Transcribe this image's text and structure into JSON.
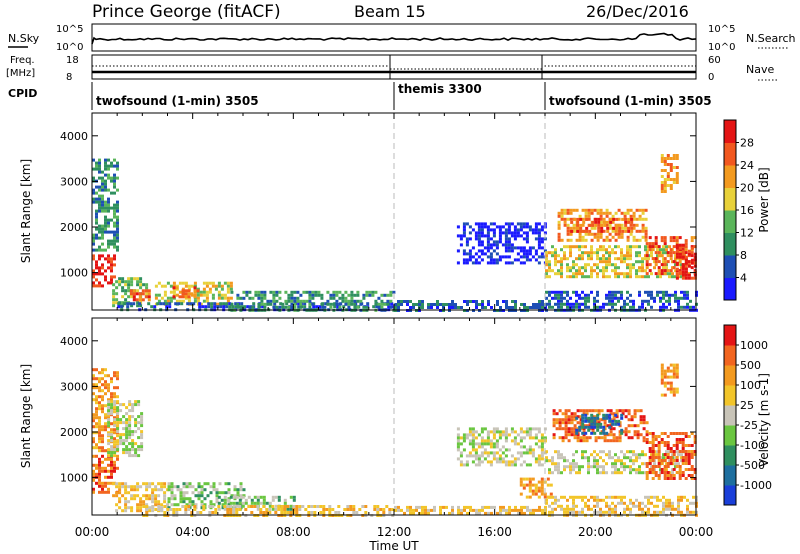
{
  "header": {
    "radar": "Prince George (fitACF)",
    "beam": "Beam 15",
    "date": "26/Dec/2016"
  },
  "top_panels": {
    "nsky_label": "N.Sky",
    "nsearch_label": "N.Search",
    "noise_ticks": [
      "10^5",
      "10^0"
    ],
    "freq_label_1": "Freq.",
    "freq_label_2": "[MHz]",
    "freq_ticks": [
      "18",
      "8"
    ],
    "nave_label": "Nave",
    "nave_ticks": [
      "60",
      "0"
    ],
    "cpid_label": "CPID"
  },
  "cpid_segments": [
    {
      "name": "twofsound (1-min) 3505",
      "start": 0,
      "end": 12
    },
    {
      "name": "themis 3300",
      "start": 12,
      "end": 18
    },
    {
      "name": "twofsound (1-min) 3505",
      "start": 18,
      "end": 24
    }
  ],
  "chart_data": [
    {
      "type": "heatmap",
      "name": "Power",
      "ylabel": "Slant Range [km]",
      "xlabel": "",
      "xlim": [
        0,
        24
      ],
      "ylim": [
        180,
        4500
      ],
      "y_ticks": [
        1000,
        2000,
        3000,
        4000
      ],
      "colorbar": {
        "label": "Power [dB]",
        "ticks": [
          "4",
          "8",
          "12",
          "16",
          "20",
          "24",
          "28"
        ],
        "colors": [
          "#1a1aff",
          "#1e4fb4",
          "#2f8f5f",
          "#5ab55a",
          "#e8d13a",
          "#f39a1f",
          "#f2581f",
          "#e41414"
        ]
      },
      "regions": [
        {
          "t": [
            0.0,
            0.9
          ],
          "r": [
            700,
            1400
          ],
          "level": 7
        },
        {
          "t": [
            0.0,
            1.0
          ],
          "r": [
            1500,
            3500
          ],
          "level": 2
        },
        {
          "t": [
            0.8,
            2.2
          ],
          "r": [
            300,
            900
          ],
          "level": 3
        },
        {
          "t": [
            1.5,
            2.3
          ],
          "r": [
            400,
            700
          ],
          "level": 6
        },
        {
          "t": [
            2.5,
            5.5
          ],
          "r": [
            300,
            800
          ],
          "level": 4
        },
        {
          "t": [
            3.2,
            4.2
          ],
          "r": [
            450,
            700
          ],
          "level": 6
        },
        {
          "t": [
            1.0,
            12.0
          ],
          "r": [
            190,
            350
          ],
          "level": 1
        },
        {
          "t": [
            5.5,
            12.0
          ],
          "r": [
            200,
            600
          ],
          "level": 2
        },
        {
          "t": [
            12.0,
            18.0
          ],
          "r": [
            190,
            400
          ],
          "level": 1
        },
        {
          "t": [
            14.5,
            18.0
          ],
          "r": [
            1200,
            2100
          ],
          "level": 0
        },
        {
          "t": [
            18.0,
            23.5
          ],
          "r": [
            900,
            1600
          ],
          "level": 4
        },
        {
          "t": [
            18.5,
            22.0
          ],
          "r": [
            1700,
            2400
          ],
          "level": 5
        },
        {
          "t": [
            19.0,
            21.5
          ],
          "r": [
            1900,
            2200
          ],
          "level": 6
        },
        {
          "t": [
            22.0,
            24.0
          ],
          "r": [
            1000,
            1800
          ],
          "level": 6
        },
        {
          "t": [
            23.2,
            24.0
          ],
          "r": [
            900,
            1700
          ],
          "level": 7
        },
        {
          "t": [
            22.6,
            23.2
          ],
          "r": [
            2800,
            3600
          ],
          "level": 5
        },
        {
          "t": [
            18.0,
            24.0
          ],
          "r": [
            190,
            600
          ],
          "level": 1
        }
      ]
    },
    {
      "type": "heatmap",
      "name": "Velocity",
      "ylabel": "Slant Range [km]",
      "xlabel": "Time UT",
      "xlim": [
        0,
        24
      ],
      "ylim": [
        180,
        4500
      ],
      "x_ticks": [
        "00:00",
        "04:00",
        "08:00",
        "12:00",
        "16:00",
        "20:00",
        "00:00"
      ],
      "y_ticks": [
        1000,
        2000,
        3000,
        4000
      ],
      "colorbar": {
        "label": "Velocity [m s-1]",
        "ticks": [
          "1000",
          "500",
          "100",
          "25",
          "-25",
          "-100",
          "-500",
          "-1000"
        ],
        "colors": [
          "#1a3fd9",
          "#1e6f9f",
          "#2f8f5f",
          "#6ac640",
          "#c8c4b8",
          "#f2c52a",
          "#f39a1f",
          "#f2651f",
          "#e41414"
        ]
      },
      "regions": [
        {
          "t": [
            0.0,
            1.0
          ],
          "r": [
            700,
            1500
          ],
          "level": 7
        },
        {
          "t": [
            0.0,
            1.0
          ],
          "r": [
            1600,
            3400
          ],
          "level": 6
        },
        {
          "t": [
            0.6,
            2.0
          ],
          "r": [
            1500,
            2700
          ],
          "level": 4
        },
        {
          "t": [
            0.8,
            3.0
          ],
          "r": [
            300,
            900
          ],
          "level": 5
        },
        {
          "t": [
            3.0,
            6.0
          ],
          "r": [
            350,
            900
          ],
          "level": 3
        },
        {
          "t": [
            5.0,
            8.0
          ],
          "r": [
            300,
            600
          ],
          "level": 3
        },
        {
          "t": [
            2.0,
            12.0
          ],
          "r": [
            190,
            400
          ],
          "level": 5
        },
        {
          "t": [
            12.0,
            18.0
          ],
          "r": [
            190,
            380
          ],
          "level": 5
        },
        {
          "t": [
            14.5,
            18.0
          ],
          "r": [
            1300,
            2100
          ],
          "level": 4
        },
        {
          "t": [
            17.0,
            18.3
          ],
          "r": [
            600,
            1000
          ],
          "level": 6
        },
        {
          "t": [
            18.0,
            23.5
          ],
          "r": [
            1100,
            1600
          ],
          "level": 4
        },
        {
          "t": [
            18.3,
            22.0
          ],
          "r": [
            1800,
            2500
          ],
          "level": 7
        },
        {
          "t": [
            19.2,
            21.0
          ],
          "r": [
            2000,
            2400
          ],
          "level": 1
        },
        {
          "t": [
            22.0,
            24.0
          ],
          "r": [
            1000,
            2000
          ],
          "level": 7
        },
        {
          "t": [
            22.6,
            23.2
          ],
          "r": [
            2800,
            3500
          ],
          "level": 6
        },
        {
          "t": [
            18.0,
            24.0
          ],
          "r": [
            190,
            600
          ],
          "level": 5
        }
      ]
    }
  ]
}
